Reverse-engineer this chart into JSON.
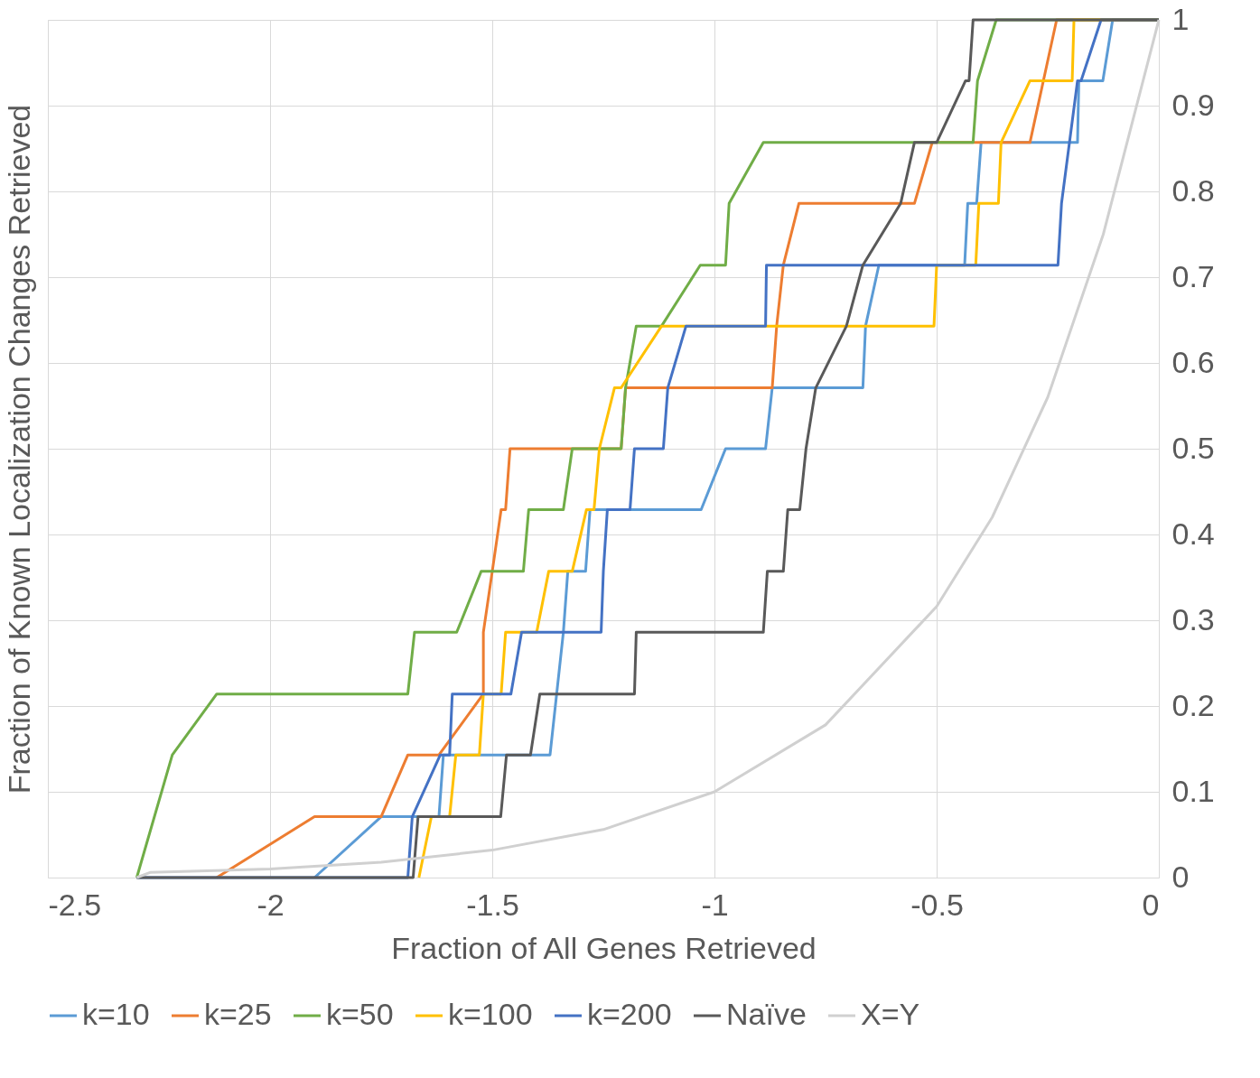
{
  "chart_data": {
    "type": "line",
    "xlabel": "Fraction of All Genes Retrieved",
    "ylabel": "Fraction of Known Localization Changes Retrieved",
    "xlim": [
      -2.5,
      0
    ],
    "xticks": [
      -2.5,
      -2,
      -1.5,
      -1,
      -0.5,
      0
    ],
    "ylim": [
      0,
      1
    ],
    "yticks": [
      0,
      0.1,
      0.2,
      0.3,
      0.4,
      0.5,
      0.6,
      0.7,
      0.8,
      0.9,
      1
    ],
    "grid": true,
    "legend": "bottom",
    "marker": "none",
    "line_style": "solid",
    "series": [
      {
        "name": "k=10",
        "color": "#5b9bd5",
        "x": [
          -1.9,
          -1.75,
          -1.62,
          -1.61,
          -1.37,
          -1.34,
          -1.33,
          -1.29,
          -1.28,
          -1.03,
          -0.975,
          -0.885,
          -0.87,
          -0.666,
          -0.66,
          -0.63,
          -0.437,
          -0.43,
          -0.41,
          -0.4,
          -0.183,
          -0.18,
          -0.126,
          -0.104,
          0
        ],
        "values": [
          0,
          0.071,
          0.071,
          0.143,
          0.143,
          0.286,
          0.357,
          0.357,
          0.429,
          0.429,
          0.5,
          0.5,
          0.571,
          0.571,
          0.643,
          0.714,
          0.714,
          0.786,
          0.786,
          0.857,
          0.857,
          0.929,
          0.929,
          1,
          1
        ]
      },
      {
        "name": "k=25",
        "color": "#ed7d31",
        "x": [
          -2.12,
          -1.9,
          -1.75,
          -1.69,
          -1.62,
          -1.52,
          -1.52,
          -1.5,
          -1.48,
          -1.47,
          -1.46,
          -1.21,
          -1.2,
          -0.87,
          -0.86,
          -0.845,
          -0.81,
          -0.55,
          -0.51,
          -0.29,
          -0.23,
          0
        ],
        "values": [
          0,
          0.071,
          0.071,
          0.143,
          0.143,
          0.214,
          0.286,
          0.357,
          0.429,
          0.429,
          0.5,
          0.5,
          0.571,
          0.571,
          0.643,
          0.714,
          0.786,
          0.786,
          0.857,
          0.857,
          1,
          1
        ]
      },
      {
        "name": "k=50",
        "color": "#70ad47",
        "x": [
          -2.3,
          -2.22,
          -2.12,
          -1.69,
          -1.675,
          -1.58,
          -1.525,
          -1.43,
          -1.418,
          -1.34,
          -1.32,
          -1.26,
          -1.21,
          -1.2,
          -1.176,
          -1.119,
          -1.032,
          -0.975,
          -0.967,
          -0.89,
          -0.418,
          -0.408,
          -0.366,
          0
        ],
        "values": [
          0,
          0.143,
          0.214,
          0.214,
          0.286,
          0.286,
          0.357,
          0.357,
          0.429,
          0.429,
          0.5,
          0.5,
          0.5,
          0.571,
          0.643,
          0.643,
          0.714,
          0.714,
          0.786,
          0.857,
          0.857,
          0.929,
          1,
          1
        ]
      },
      {
        "name": "k=100",
        "color": "#ffc000",
        "x": [
          -1.665,
          -1.637,
          -1.596,
          -1.582,
          -1.529,
          -1.52,
          -1.48,
          -1.47,
          -1.4,
          -1.373,
          -1.32,
          -1.288,
          -1.271,
          -1.259,
          -1.225,
          -1.21,
          -1.119,
          -0.506,
          -0.5,
          -0.412,
          -0.405,
          -0.361,
          -0.355,
          -0.29,
          -0.195,
          -0.191,
          0
        ],
        "values": [
          0,
          0.071,
          0.071,
          0.143,
          0.143,
          0.214,
          0.214,
          0.286,
          0.286,
          0.357,
          0.357,
          0.429,
          0.429,
          0.5,
          0.571,
          0.571,
          0.643,
          0.643,
          0.714,
          0.714,
          0.786,
          0.786,
          0.857,
          0.929,
          0.929,
          1,
          1
        ]
      },
      {
        "name": "k=200",
        "color": "#4472c4",
        "x": [
          -2.3,
          -1.69,
          -1.68,
          -1.617,
          -1.596,
          -1.59,
          -1.458,
          -1.434,
          -1.255,
          -1.25,
          -1.241,
          -1.19,
          -1.18,
          -1.115,
          -1.105,
          -1.064,
          -0.885,
          -0.883,
          -0.227,
          -0.219,
          -0.183,
          -0.175,
          -0.13,
          0
        ],
        "values": [
          0,
          0,
          0.071,
          0.143,
          0.143,
          0.214,
          0.214,
          0.286,
          0.286,
          0.357,
          0.429,
          0.429,
          0.5,
          0.5,
          0.571,
          0.643,
          0.643,
          0.714,
          0.714,
          0.786,
          0.929,
          0.929,
          1,
          1
        ]
      },
      {
        "name": "Naïve",
        "color": "#595959",
        "x": [
          -2.3,
          -1.678,
          -1.667,
          -1.481,
          -1.468,
          -1.414,
          -1.393,
          -1.18,
          -1.176,
          -0.89,
          -0.881,
          -0.845,
          -0.835,
          -0.808,
          -0.794,
          -0.772,
          -0.703,
          -0.666,
          -0.581,
          -0.55,
          -0.5,
          -0.435,
          -0.427,
          -0.418,
          0
        ],
        "values": [
          0,
          0,
          0.071,
          0.071,
          0.143,
          0.143,
          0.214,
          0.214,
          0.286,
          0.286,
          0.357,
          0.357,
          0.429,
          0.429,
          0.5,
          0.571,
          0.643,
          0.714,
          0.786,
          0.857,
          0.857,
          0.929,
          0.929,
          1,
          1
        ]
      },
      {
        "name": "X=Y",
        "color": "#d0d0d0",
        "x": [
          -2.3,
          -2.27,
          -2.0,
          -1.75,
          -1.5,
          -1.25,
          -1.0,
          -0.75,
          -0.5,
          -0.375,
          -0.25,
          -0.125,
          0
        ],
        "values": [
          0,
          0.006,
          0.01,
          0.018,
          0.032,
          0.056,
          0.1,
          0.178,
          0.316,
          0.42,
          0.56,
          0.75,
          1
        ]
      }
    ]
  }
}
